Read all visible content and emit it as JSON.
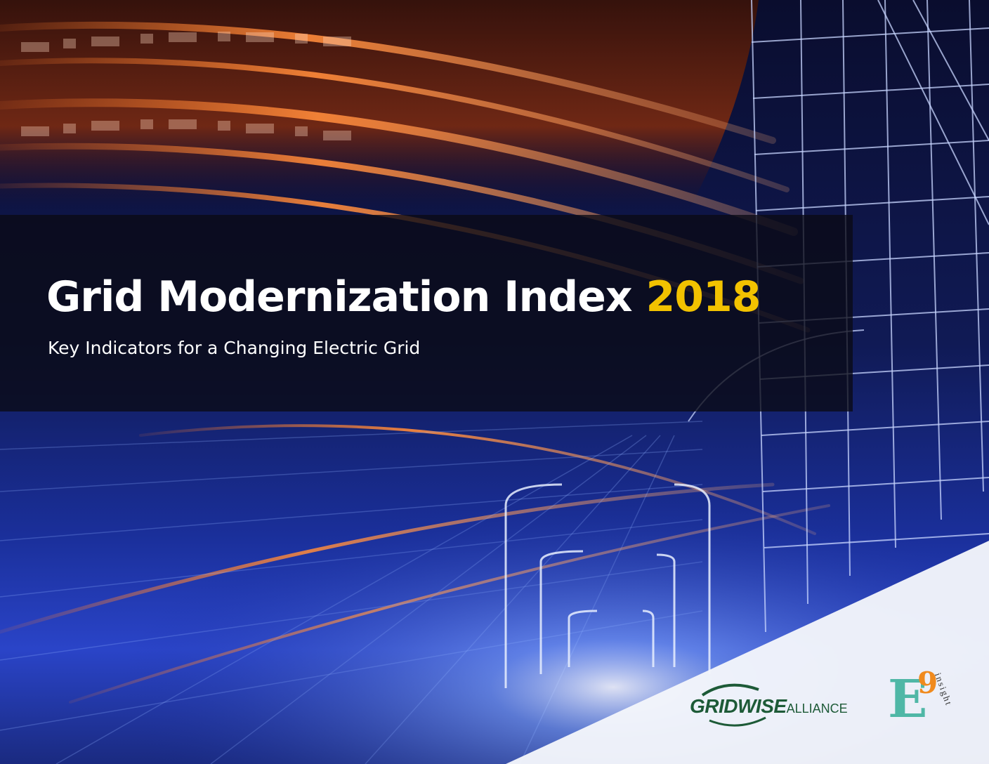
{
  "cover": {
    "title_main": "Grid Modernization Index",
    "title_year": "2018",
    "subtitle": "Key Indicators for a Changing Electric Grid"
  },
  "logos": {
    "gridwise": {
      "name": "GRIDWISE",
      "suffix": "ALLIANCE"
    },
    "e9": {
      "letter": "E",
      "digit": "9",
      "tagline": "insight"
    }
  },
  "colors": {
    "title_text": "#ffffff",
    "year_accent": "#f2c200",
    "band": "rgba(10,10,20,0.78)",
    "gridwise_green": "#1d5a37",
    "e9_teal": "#4fb7a6",
    "e9_orange": "#f08a1e"
  }
}
